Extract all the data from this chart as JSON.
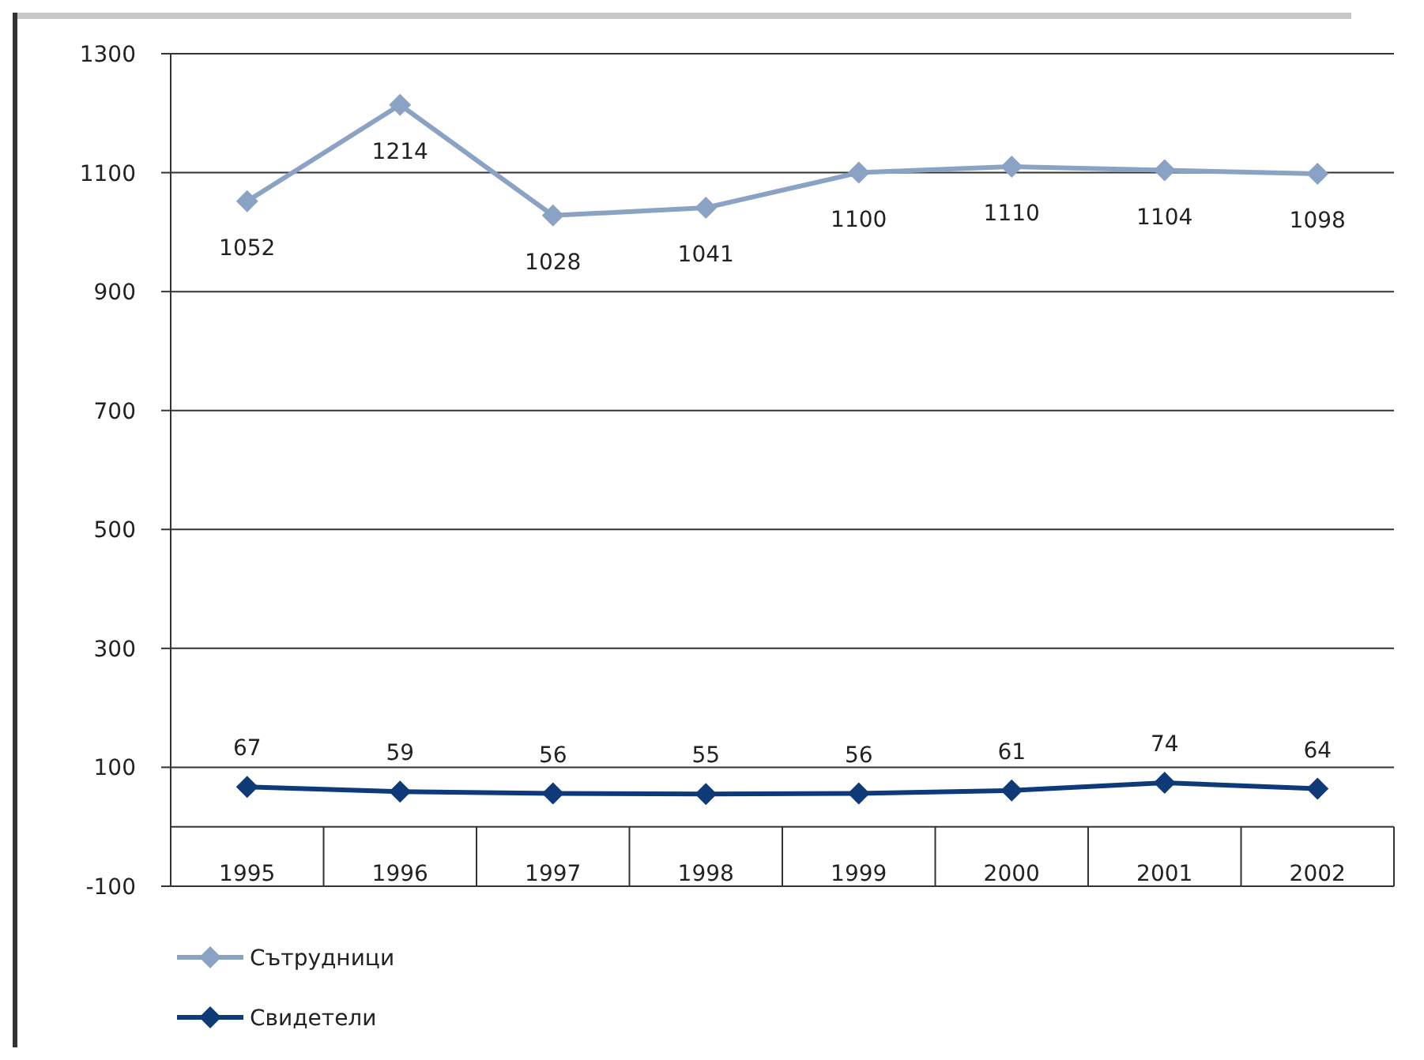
{
  "chart_data": {
    "type": "line",
    "categories": [
      "1995",
      "1996",
      "1997",
      "1998",
      "1999",
      "2000",
      "2001",
      "2002"
    ],
    "series": [
      {
        "name": "Сътрудници",
        "color": "#8aa2c4",
        "values": [
          1052,
          1214,
          1028,
          1041,
          1100,
          1110,
          1104,
          1098
        ]
      },
      {
        "name": "Свидетели",
        "color": "#0e3a78",
        "values": [
          67,
          59,
          56,
          55,
          56,
          61,
          74,
          64
        ]
      }
    ],
    "ylim": [
      -100,
      1300
    ],
    "yticks": [
      -100,
      100,
      300,
      500,
      700,
      900,
      1100,
      1300
    ],
    "grid": "y",
    "legend": "bottom left",
    "marker": "diamond",
    "data_labels": true
  }
}
